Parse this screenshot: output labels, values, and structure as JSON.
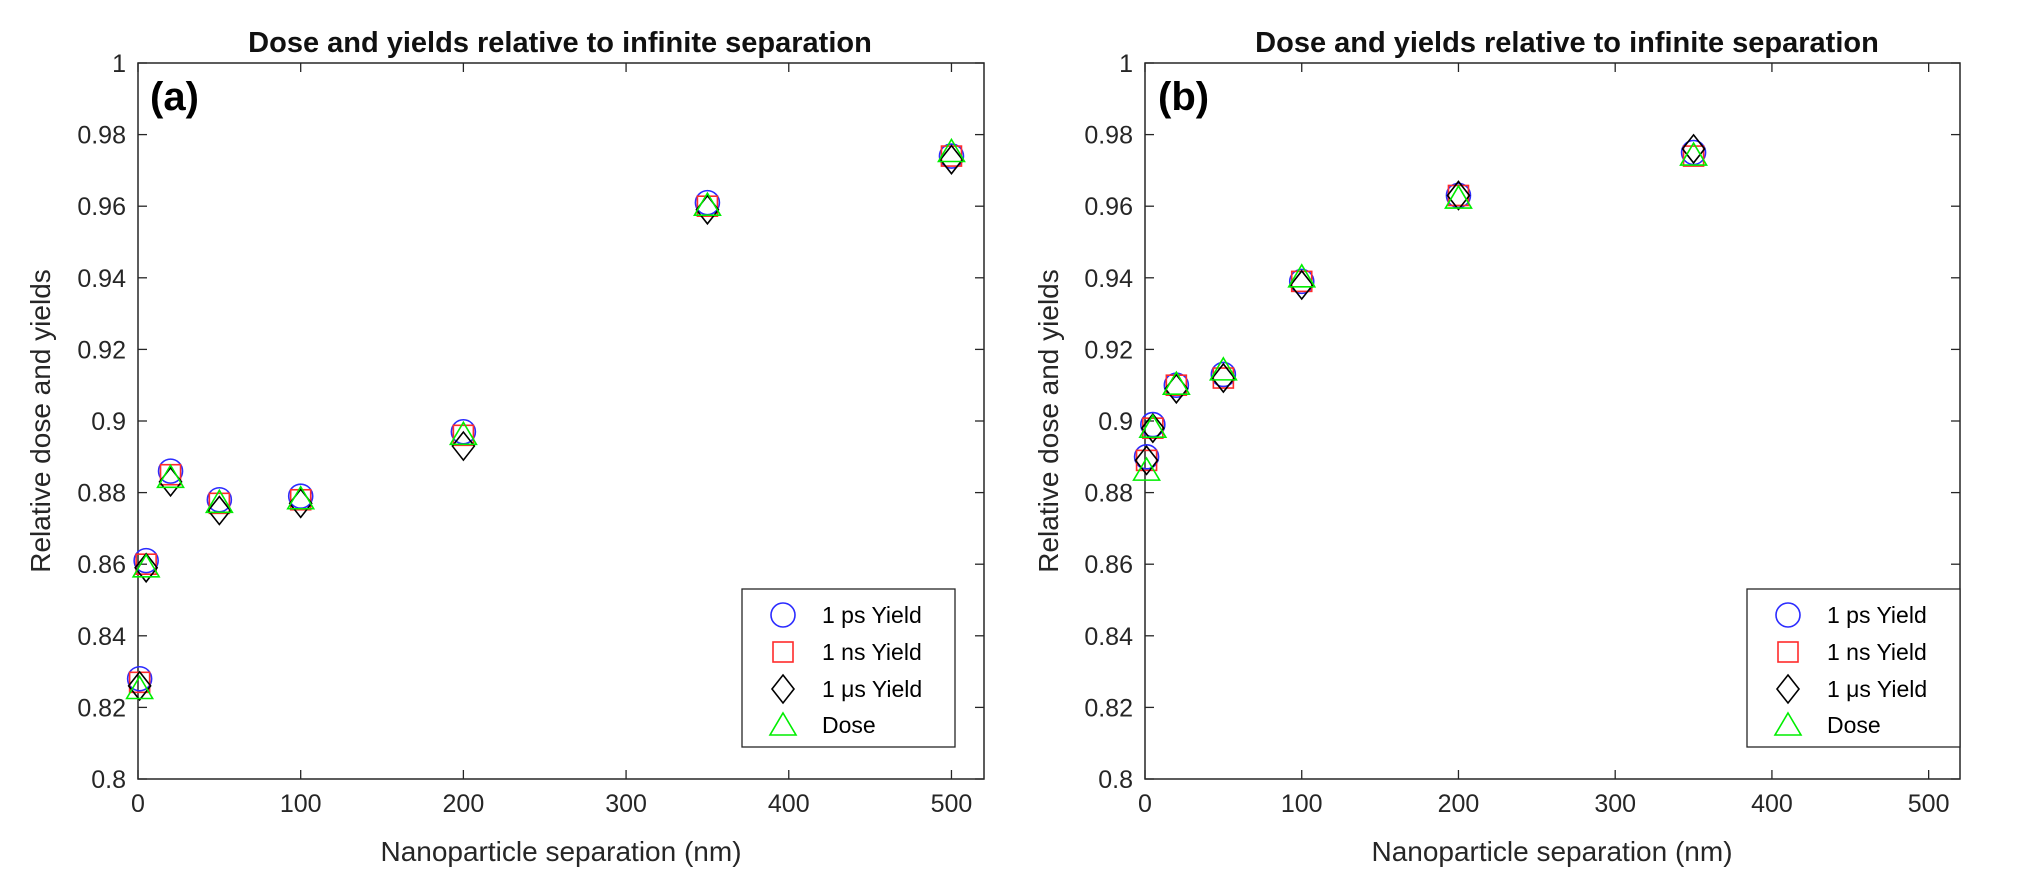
{
  "chart_data": [
    {
      "type": "scatter",
      "panel_label": "(a)",
      "title": "Dose and yields relative to infinite separation",
      "xlabel": "Nanoparticle separation (nm)",
      "ylabel": "Relative dose and yields",
      "xlim": [
        0,
        520
      ],
      "ylim": [
        0.8,
        1.0
      ],
      "xticks": [
        0,
        100,
        200,
        300,
        400,
        500
      ],
      "yticks": [
        0.8,
        0.82,
        0.84,
        0.86,
        0.88,
        0.9,
        0.92,
        0.94,
        0.96,
        0.98,
        1
      ],
      "xtick_labels": [
        "0",
        "100",
        "200",
        "300",
        "400",
        "500"
      ],
      "ytick_labels": [
        "0.8",
        "0.82",
        "0.84",
        "0.86",
        "0.88",
        "0.9",
        "0.92",
        "0.94",
        "0.96",
        "0.98",
        "1"
      ],
      "grid": false,
      "legend_position": "bottom-right",
      "series": [
        {
          "name": "1 ps Yield",
          "marker": "circle",
          "color": "#2b2bff",
          "x": [
            1,
            5,
            20,
            50,
            100,
            200,
            350,
            500
          ],
          "y": [
            0.828,
            0.861,
            0.886,
            0.878,
            0.879,
            0.897,
            0.961,
            0.974
          ]
        },
        {
          "name": "1 ns Yield",
          "marker": "square",
          "color": "#ff2b2b",
          "x": [
            1,
            5,
            20,
            50,
            100,
            200,
            350,
            500
          ],
          "y": [
            0.827,
            0.86,
            0.885,
            0.877,
            0.878,
            0.896,
            0.96,
            0.974
          ]
        },
        {
          "name": "1 μs Yield",
          "marker": "diamond",
          "color": "#000000",
          "x": [
            1,
            5,
            20,
            50,
            100,
            200,
            350,
            500
          ],
          "y": [
            0.826,
            0.859,
            0.883,
            0.875,
            0.877,
            0.893,
            0.959,
            0.973
          ]
        },
        {
          "name": "Dose",
          "marker": "triangle",
          "color": "#00ee00",
          "x": [
            1,
            5,
            20,
            50,
            100,
            200,
            350,
            500
          ],
          "y": [
            0.825,
            0.859,
            0.884,
            0.877,
            0.878,
            0.896,
            0.96,
            0.975
          ]
        }
      ]
    },
    {
      "type": "scatter",
      "panel_label": "(b)",
      "title": "Dose and yields relative to infinite separation",
      "xlabel": "Nanoparticle separation (nm)",
      "ylabel": "Relative dose and yields",
      "xlim": [
        0,
        520
      ],
      "ylim": [
        0.8,
        1.0
      ],
      "xticks": [
        0,
        100,
        200,
        300,
        400,
        500
      ],
      "yticks": [
        0.8,
        0.82,
        0.84,
        0.86,
        0.88,
        0.9,
        0.92,
        0.94,
        0.96,
        0.98,
        1
      ],
      "xtick_labels": [
        "0",
        "100",
        "200",
        "300",
        "400",
        "500"
      ],
      "ytick_labels": [
        "0.8",
        "0.82",
        "0.84",
        "0.86",
        "0.88",
        "0.9",
        "0.92",
        "0.94",
        "0.96",
        "0.98",
        "1"
      ],
      "grid": false,
      "legend_position": "bottom-right",
      "series": [
        {
          "name": "1 ps Yield",
          "marker": "circle",
          "color": "#2b2bff",
          "x": [
            1,
            5,
            20,
            50,
            100,
            200,
            350
          ],
          "y": [
            0.89,
            0.899,
            0.91,
            0.913,
            0.939,
            0.963,
            0.975
          ]
        },
        {
          "name": "1 ns Yield",
          "marker": "square",
          "color": "#ff2b2b",
          "x": [
            1,
            5,
            20,
            50,
            100,
            200,
            350
          ],
          "y": [
            0.889,
            0.898,
            0.91,
            0.912,
            0.939,
            0.963,
            0.974
          ]
        },
        {
          "name": "1 μs Yield",
          "marker": "diamond",
          "color": "#000000",
          "x": [
            1,
            5,
            20,
            50,
            100,
            200,
            350
          ],
          "y": [
            0.889,
            0.898,
            0.909,
            0.912,
            0.938,
            0.963,
            0.976
          ]
        },
        {
          "name": "Dose",
          "marker": "triangle",
          "color": "#00ee00",
          "x": [
            1,
            5,
            20,
            50,
            100,
            200,
            350
          ],
          "y": [
            0.886,
            0.898,
            0.91,
            0.914,
            0.94,
            0.962,
            0.974
          ]
        }
      ]
    }
  ]
}
